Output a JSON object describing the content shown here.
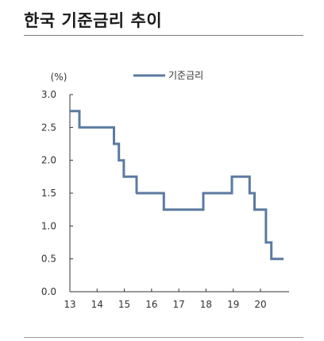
{
  "header": {
    "title": "한국 기준금리 추이"
  },
  "chart_data": {
    "type": "line",
    "line_style": "step",
    "ylabel": "(%)",
    "ylim": [
      0.0,
      3.0
    ],
    "xlim": [
      13,
      20.9
    ],
    "x_ticks": [
      13,
      14,
      15,
      16,
      17,
      18,
      19,
      20
    ],
    "x_tick_labels": [
      "13",
      "14",
      "15",
      "16",
      "17",
      "18",
      "19",
      "20"
    ],
    "y_ticks": [
      0.0,
      0.5,
      1.0,
      1.5,
      2.0,
      2.5,
      3.0
    ],
    "y_tick_labels": [
      "0.0",
      "0.5",
      "1.0",
      "1.5",
      "2.0",
      "2.5",
      "3.0"
    ],
    "legend_position": "top-center",
    "colors": {
      "series": "#5b7aa0"
    },
    "series": [
      {
        "name": "기준금리",
        "x": [
          13.0,
          13.35,
          14.62,
          14.8,
          14.98,
          15.45,
          15.42,
          16.45,
          17.9,
          18.95,
          19.6,
          19.78,
          20.2,
          20.4,
          20.85
        ],
        "values": [
          2.75,
          2.5,
          2.25,
          2.0,
          1.75,
          1.5,
          1.5,
          1.25,
          1.5,
          1.75,
          1.5,
          1.25,
          0.75,
          0.5,
          0.5
        ]
      }
    ]
  }
}
